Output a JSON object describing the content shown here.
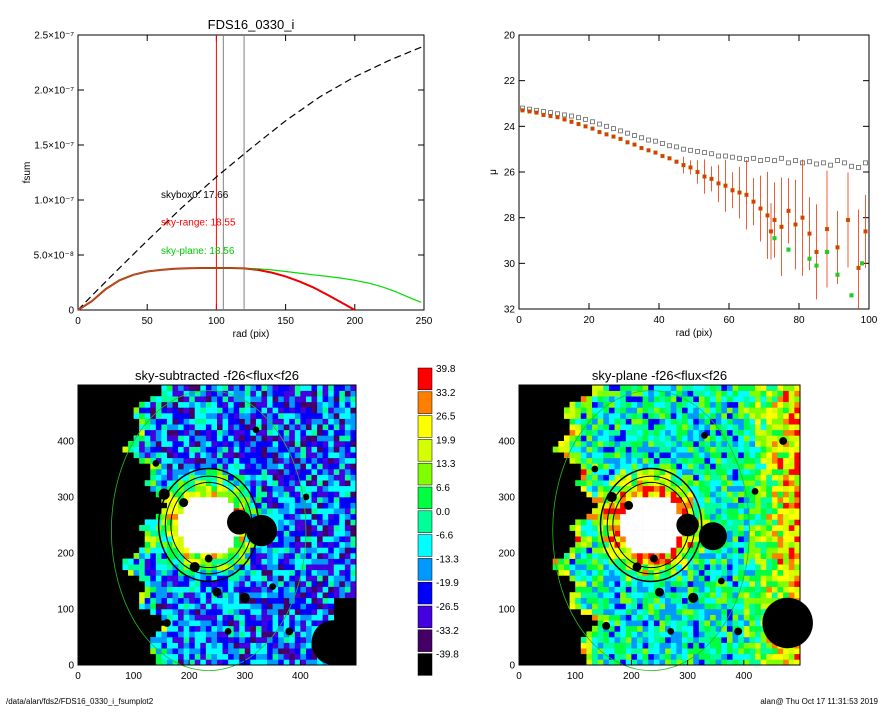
{
  "footer": {
    "path": "/data/alan/fds2/FDS16_0330_i_fsumplot2",
    "stamp": "alan@  Thu Oct 17 11:31:53 2019"
  },
  "chart_data": [
    {
      "type": "line",
      "title": "FDS16_0330_i",
      "xlabel": "rad (pix)",
      "ylabel": "fsum",
      "xlim": [
        0,
        250
      ],
      "ylim": [
        0,
        2.5e-07
      ],
      "x_ticks": [
        {
          "v": 0,
          "label": "0"
        },
        {
          "v": 50,
          "label": "50"
        },
        {
          "v": 100,
          "label": "100"
        },
        {
          "v": 150,
          "label": "150"
        },
        {
          "v": 200,
          "label": "200"
        },
        {
          "v": 250,
          "label": "250"
        }
      ],
      "y_ticks": [
        {
          "v": 0,
          "label": "0"
        },
        {
          "v": 5e-08,
          "label": "5.0×10⁻⁸"
        },
        {
          "v": 1e-07,
          "label": "1.0×10⁻⁷"
        },
        {
          "v": 1.5e-07,
          "label": "1.5×10⁻⁷"
        },
        {
          "v": 2e-07,
          "label": "2.0×10⁻⁷"
        },
        {
          "v": 2.5e-07,
          "label": "2.5×10⁻⁷"
        }
      ],
      "vlines": [
        {
          "x": 100,
          "color": "#ff0000"
        },
        {
          "x": 105,
          "color": "#808080"
        },
        {
          "x": 120,
          "color": "#808080"
        }
      ],
      "annotations": [
        {
          "text": "skybox0: 17.66",
          "x": 60,
          "y": 1.02e-07,
          "color": "#000000"
        },
        {
          "text": "sky-range: 18.55",
          "x": 60,
          "y": 7.7e-08,
          "color": "#ff0000"
        },
        {
          "text": "sky-plane: 18.56",
          "x": 60,
          "y": 5.1e-08,
          "color": "#00cc00"
        }
      ],
      "series": [
        {
          "style": "dashed",
          "color": "#000000",
          "x": [
            0,
            10,
            25,
            50,
            75,
            100,
            125,
            150,
            175,
            200,
            225,
            250
          ],
          "y": [
            0,
            1.3e-08,
            3.2e-08,
            6.3e-08,
            9.3e-08,
            1.21e-07,
            1.47e-07,
            1.72e-07,
            1.94e-07,
            2.12e-07,
            2.27e-07,
            2.4e-07
          ]
        },
        {
          "style": "solid",
          "color": "#00dd00",
          "x": [
            0,
            10,
            20,
            30,
            40,
            50,
            60,
            70,
            80,
            90,
            100,
            110,
            120,
            130,
            140,
            150,
            160,
            170,
            180,
            190,
            200,
            210,
            220,
            230,
            240,
            248
          ],
          "y": [
            0,
            8e-09,
            1.9e-08,
            2.7e-08,
            3.2e-08,
            3.5e-08,
            3.65e-08,
            3.75e-08,
            3.8e-08,
            3.82e-08,
            3.82e-08,
            3.82e-08,
            3.8e-08,
            3.75e-08,
            3.65e-08,
            3.5e-08,
            3.35e-08,
            3.2e-08,
            3.05e-08,
            2.9e-08,
            2.7e-08,
            2.45e-08,
            2.1e-08,
            1.65e-08,
            1.1e-08,
            7e-09
          ]
        },
        {
          "style": "solid",
          "color": "#ee0000",
          "x": [
            0,
            10,
            20,
            30,
            40,
            50,
            60,
            70,
            80,
            90,
            100,
            110,
            120,
            130,
            140,
            150,
            160,
            170,
            180,
            190,
            200
          ],
          "y": [
            0,
            8e-09,
            1.9e-08,
            2.7e-08,
            3.2e-08,
            3.5e-08,
            3.65e-08,
            3.75e-08,
            3.8e-08,
            3.82e-08,
            3.82e-08,
            3.82e-08,
            3.78e-08,
            3.65e-08,
            3.4e-08,
            3.05e-08,
            2.6e-08,
            2.05e-08,
            1.4e-08,
            7e-09,
            0
          ]
        },
        {
          "style": "solid",
          "color": "#8a6a20",
          "x": [
            0,
            10,
            20,
            30,
            40,
            50,
            60,
            70,
            80,
            90,
            100,
            110,
            120,
            130
          ],
          "y": [
            0,
            8e-09,
            1.9e-08,
            2.7e-08,
            3.2e-08,
            3.5e-08,
            3.65e-08,
            3.75e-08,
            3.8e-08,
            3.82e-08,
            3.82e-08,
            3.82e-08,
            3.78e-08,
            3.68e-08
          ]
        }
      ]
    },
    {
      "type": "scatter",
      "title": "",
      "xlabel": "rad (pix)",
      "ylabel": "μ",
      "xlim": [
        0,
        100
      ],
      "ylim": [
        32,
        20
      ],
      "x_ticks": [
        {
          "v": 0,
          "label": "0"
        },
        {
          "v": 20,
          "label": "20"
        },
        {
          "v": 40,
          "label": "40"
        },
        {
          "v": 60,
          "label": "60"
        },
        {
          "v": 80,
          "label": "80"
        },
        {
          "v": 100,
          "label": "100"
        }
      ],
      "y_ticks": [
        {
          "v": 20,
          "label": "20"
        },
        {
          "v": 22,
          "label": "22"
        },
        {
          "v": 24,
          "label": "24"
        },
        {
          "v": 26,
          "label": "26"
        },
        {
          "v": 28,
          "label": "28"
        },
        {
          "v": 30,
          "label": "30"
        },
        {
          "v": 32,
          "label": "32"
        }
      ],
      "series": [
        {
          "marker": "open-square",
          "color": "#666666",
          "x": [
            1,
            3,
            5,
            7,
            9,
            11,
            13,
            15,
            17,
            19,
            21,
            23,
            25,
            27,
            29,
            31,
            33,
            35,
            37,
            39,
            41,
            43,
            45,
            47,
            49,
            51,
            53,
            55,
            57,
            59,
            61,
            63,
            65,
            67,
            69,
            71,
            73,
            75,
            77,
            79,
            81,
            83,
            85,
            87,
            89,
            91,
            93,
            95,
            97,
            99
          ],
          "y": [
            23.2,
            23.25,
            23.3,
            23.35,
            23.4,
            23.45,
            23.5,
            23.55,
            23.62,
            23.7,
            23.8,
            23.9,
            24.0,
            24.1,
            24.2,
            24.3,
            24.4,
            24.5,
            24.6,
            24.65,
            24.75,
            24.85,
            24.9,
            25.0,
            25.05,
            25.1,
            25.15,
            25.2,
            25.3,
            25.3,
            25.35,
            25.4,
            25.45,
            25.4,
            25.5,
            25.45,
            25.5,
            25.4,
            25.6,
            25.5,
            25.6,
            25.55,
            25.65,
            25.6,
            25.7,
            25.5,
            25.6,
            25.75,
            25.8,
            25.6
          ]
        },
        {
          "marker": "filled-square",
          "color": "#ee3300",
          "x": [
            1,
            3,
            5,
            7,
            9,
            11,
            13,
            15,
            17,
            19,
            21,
            23,
            25,
            27,
            29,
            31,
            33,
            35,
            37,
            39,
            41,
            43,
            45,
            47,
            49,
            51,
            53,
            55,
            57,
            59,
            61,
            63,
            65,
            67,
            69,
            71,
            72,
            73,
            75,
            77,
            79,
            81,
            83,
            85,
            88,
            91,
            94,
            97,
            99
          ],
          "y": [
            23.3,
            23.35,
            23.4,
            23.5,
            23.55,
            23.6,
            23.7,
            23.8,
            23.9,
            24.0,
            24.1,
            24.25,
            24.35,
            24.45,
            24.55,
            24.7,
            24.8,
            24.95,
            25.05,
            25.15,
            25.3,
            25.4,
            25.55,
            25.7,
            25.8,
            26.0,
            26.2,
            26.3,
            26.5,
            26.6,
            26.8,
            26.9,
            27.0,
            27.3,
            27.6,
            27.9,
            28.6,
            28.1,
            28.4,
            27.7,
            28.3,
            28.0,
            28.7,
            29.5,
            28.5,
            29.3,
            28.1,
            30.2,
            28.6
          ]
        },
        {
          "marker": "filled-square",
          "color": "#22cc22",
          "x": [
            73,
            77,
            83,
            85,
            88,
            91,
            95,
            98
          ],
          "y": [
            28.9,
            29.4,
            29.8,
            30.1,
            29.5,
            30.5,
            31.4,
            30.0
          ]
        }
      ]
    },
    {
      "type": "heatmap",
      "title": "sky-subtracted -f26<flux<f26",
      "xlim": [
        0,
        500
      ],
      "ylim": [
        0,
        500
      ],
      "x_ticks": [
        {
          "v": 0,
          "label": "0"
        },
        {
          "v": 100,
          "label": "100"
        },
        {
          "v": 200,
          "label": "200"
        },
        {
          "v": 300,
          "label": "300"
        },
        {
          "v": 400,
          "label": "400"
        }
      ],
      "y_ticks": [
        {
          "v": 0,
          "label": "0"
        },
        {
          "v": 100,
          "label": "100"
        },
        {
          "v": 200,
          "label": "200"
        },
        {
          "v": 300,
          "label": "300"
        },
        {
          "v": 400,
          "label": "400"
        }
      ],
      "center": [
        235,
        250
      ]
    },
    {
      "type": "heatmap",
      "title": "sky-plane -f26<flux<f26",
      "xlim": [
        0,
        500
      ],
      "ylim": [
        0,
        500
      ],
      "x_ticks": [
        {
          "v": 0,
          "label": "0"
        },
        {
          "v": 100,
          "label": "100"
        },
        {
          "v": 200,
          "label": "200"
        },
        {
          "v": 300,
          "label": "300"
        },
        {
          "v": 400,
          "label": "400"
        }
      ],
      "y_ticks": [
        {
          "v": 0,
          "label": "0"
        },
        {
          "v": 100,
          "label": "100"
        },
        {
          "v": 200,
          "label": "200"
        },
        {
          "v": 300,
          "label": "300"
        },
        {
          "v": 400,
          "label": "400"
        }
      ],
      "center": [
        235,
        250
      ]
    }
  ],
  "colorbar": {
    "levels": [
      {
        "label": "39.8",
        "color": "#ff0000"
      },
      {
        "label": "33.2",
        "color": "#ff8000"
      },
      {
        "label": "26.5",
        "color": "#ffff00"
      },
      {
        "label": "19.9",
        "color": "#d4ff00"
      },
      {
        "label": "13.3",
        "color": "#80ff00"
      },
      {
        "label": "6.6",
        "color": "#00ff40"
      },
      {
        "label": "0.0",
        "color": "#00ff99"
      },
      {
        "label": "-6.6",
        "color": "#00ffff"
      },
      {
        "label": "-13.3",
        "color": "#0099ff"
      },
      {
        "label": "-19.9",
        "color": "#0000ff"
      },
      {
        "label": "-26.5",
        "color": "#4400dd"
      },
      {
        "label": "-33.2",
        "color": "#440066"
      },
      {
        "label": "-39.8",
        "color": "#000000"
      }
    ]
  }
}
